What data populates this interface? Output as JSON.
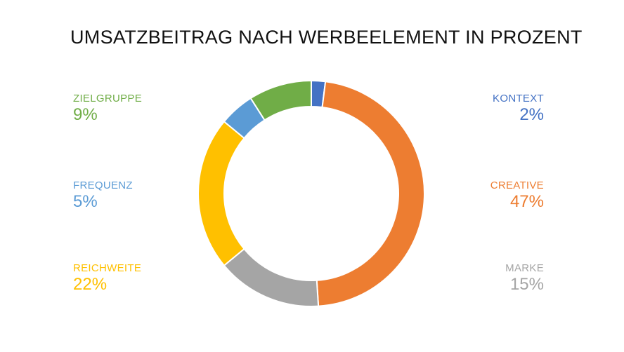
{
  "chart_data": {
    "type": "pie",
    "variant": "donut",
    "title": "UMSATZBEITRAG NACH WERBEELEMENT IN PROZENT",
    "slices": [
      {
        "name": "KONTEXT",
        "value": 2,
        "label": "2%",
        "color": "#4472C4"
      },
      {
        "name": "CREATIVE",
        "value": 47,
        "label": "47%",
        "color": "#ED7D31"
      },
      {
        "name": "MARKE",
        "value": 15,
        "label": "15%",
        "color": "#A5A5A5"
      },
      {
        "name": "REICHWEITE",
        "value": 22,
        "label": "22%",
        "color": "#FFC000"
      },
      {
        "name": "FREQUENZ",
        "value": 5,
        "label": "5%",
        "color": "#5B9BD5"
      },
      {
        "name": "ZIELGRUPPE",
        "value": 9,
        "label": "9%",
        "color": "#70AD47"
      }
    ],
    "legend": "side labels"
  }
}
